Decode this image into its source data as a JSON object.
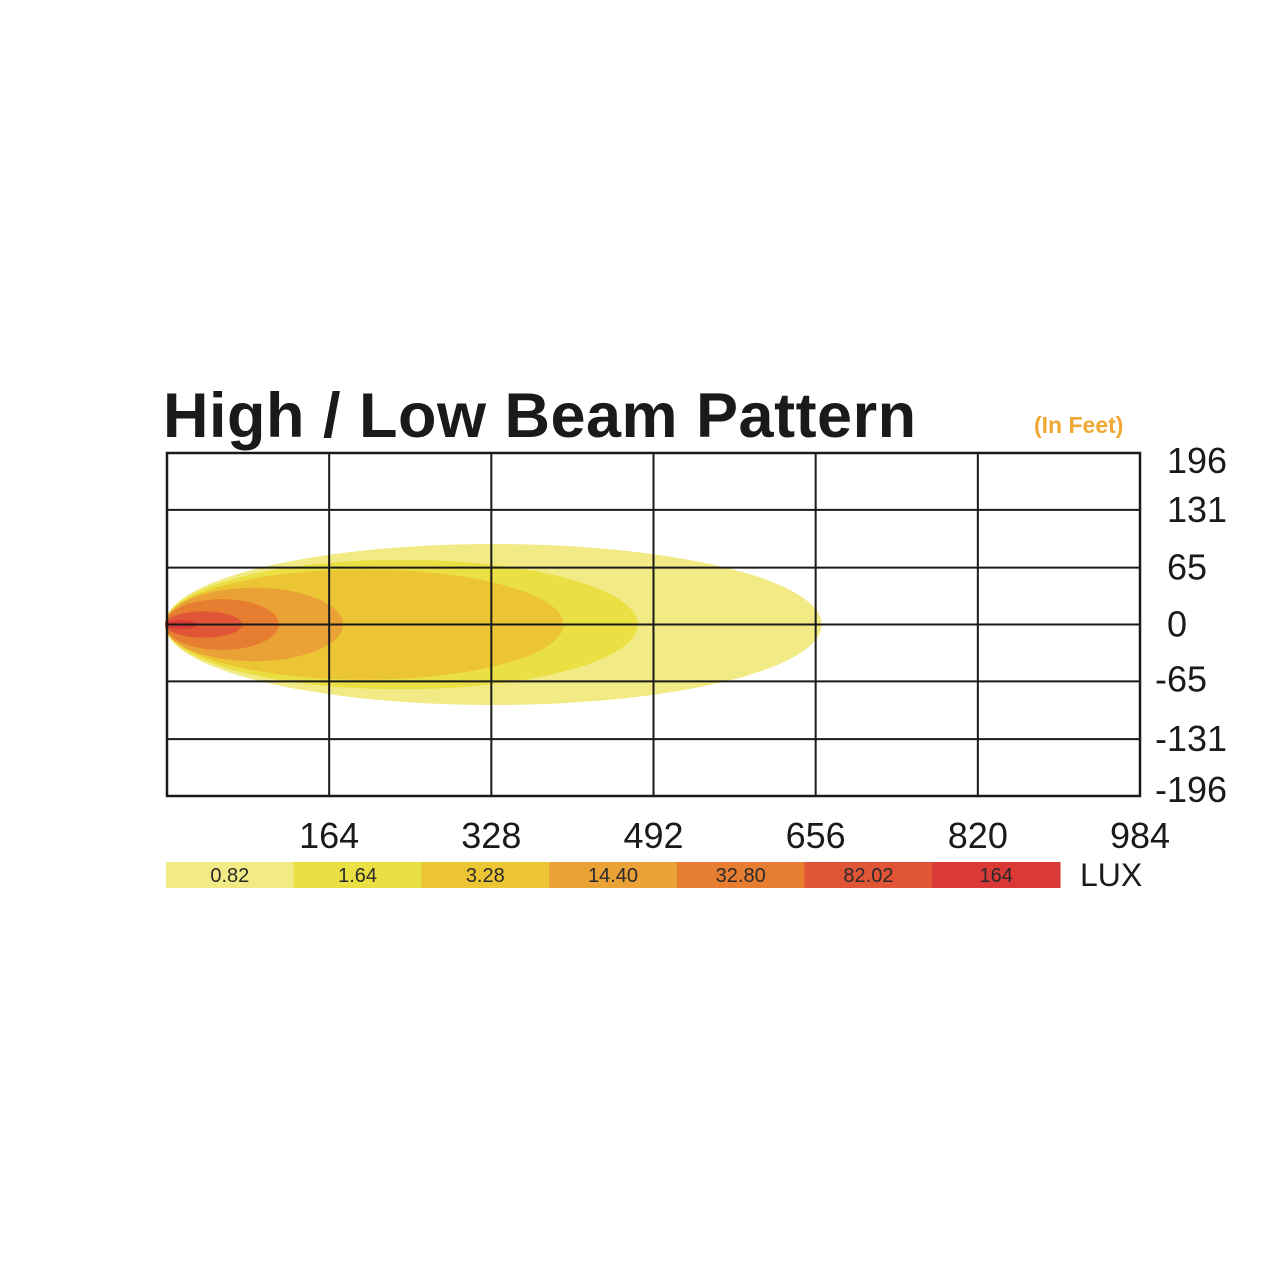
{
  "title": "High / Low Beam Pattern",
  "unit_note": "(In Feet)",
  "chart_data": {
    "type": "heatmap",
    "title": "High / Low Beam Pattern",
    "unit": "(In Feet)",
    "x_ticks": [
      "164",
      "328",
      "492",
      "656",
      "820",
      "984"
    ],
    "y_ticks": [
      "196",
      "131",
      "65",
      "0",
      "-65",
      "-131",
      "-196"
    ],
    "xlim": [
      0,
      984
    ],
    "ylim": [
      -196,
      196
    ],
    "grid": true,
    "contours": [
      {
        "lux": "0.82",
        "reach": 656,
        "half_width": 92,
        "color": "#f2ea84"
      },
      {
        "lux": "1.64",
        "reach": 470,
        "half_width": 74,
        "color": "#ebe043"
      },
      {
        "lux": "3.28",
        "reach": 395,
        "half_width": 63,
        "color": "#ebc534"
      },
      {
        "lux": "14.40",
        "reach": 172,
        "half_width": 42,
        "color": "#eaa136"
      },
      {
        "lux": "32.80",
        "reach": 107,
        "half_width": 29,
        "color": "#e67d30"
      },
      {
        "lux": "82.02",
        "reach": 70,
        "half_width": 15,
        "color": "#df5535"
      },
      {
        "lux": "164",
        "reach": 25,
        "half_width": 5,
        "color": "#da3935"
      }
    ],
    "legend": {
      "unit": "LUX",
      "items": [
        {
          "label": "0.82",
          "color": "#f2ea84"
        },
        {
          "label": "1.64",
          "color": "#ebe043"
        },
        {
          "label": "3.28",
          "color": "#ebc534"
        },
        {
          "label": "14.40",
          "color": "#eaa136"
        },
        {
          "label": "32.80",
          "color": "#e67d30"
        },
        {
          "label": "82.02",
          "color": "#df5535"
        },
        {
          "label": "164",
          "color": "#da3935"
        }
      ]
    }
  }
}
